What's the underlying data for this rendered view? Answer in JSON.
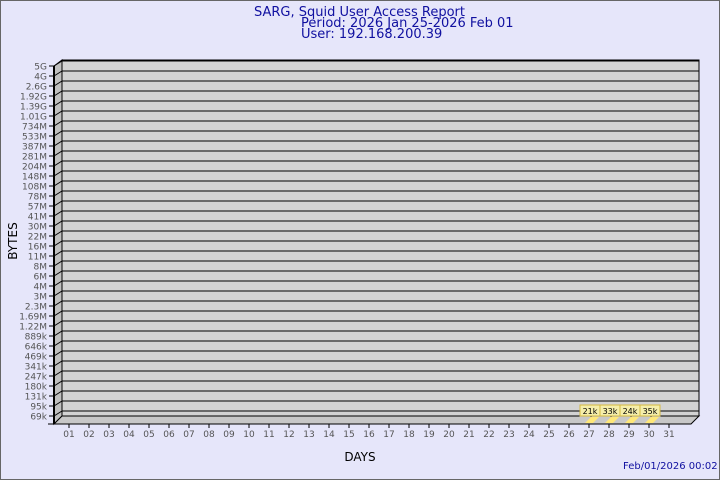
{
  "chart_data": {
    "type": "bar",
    "title": "SARG, Squid User Access Report",
    "period": "Period: 2026 Jan 25-2026 Feb 01",
    "user": "User: 192.168.200.39",
    "xlabel": "DAYS",
    "ylabel": "BYTES",
    "y_scale": "log",
    "grid": true,
    "y_ticks": [
      "69k",
      "95k",
      "131k",
      "180k",
      "247k",
      "341k",
      "469k",
      "646k",
      "889k",
      "1.22M",
      "1.69M",
      "2.3M",
      "3M",
      "4M",
      "6M",
      "8M",
      "11M",
      "16M",
      "22M",
      "30M",
      "41M",
      "57M",
      "78M",
      "108M",
      "148M",
      "204M",
      "281M",
      "387M",
      "533M",
      "734M",
      "1.01G",
      "1.39G",
      "1.92G",
      "2.6G",
      "4G",
      "5G"
    ],
    "categories": [
      "01",
      "02",
      "03",
      "04",
      "05",
      "06",
      "07",
      "08",
      "09",
      "10",
      "11",
      "12",
      "13",
      "14",
      "15",
      "16",
      "17",
      "18",
      "19",
      "20",
      "21",
      "22",
      "23",
      "24",
      "25",
      "26",
      "27",
      "28",
      "29",
      "30",
      "31"
    ],
    "bars": [
      {
        "day": "27",
        "label": "21k"
      },
      {
        "day": "28",
        "label": "33k"
      },
      {
        "day": "29",
        "label": "24k"
      },
      {
        "day": "30",
        "label": "35k"
      }
    ],
    "colors": {
      "bar": "#ffe87a",
      "label_bg": "#f5eeaa",
      "wall": "#d3d3d3",
      "title": "#1010a0"
    }
  },
  "footer": {
    "timestamp": "Feb/01/2026 00:02"
  }
}
